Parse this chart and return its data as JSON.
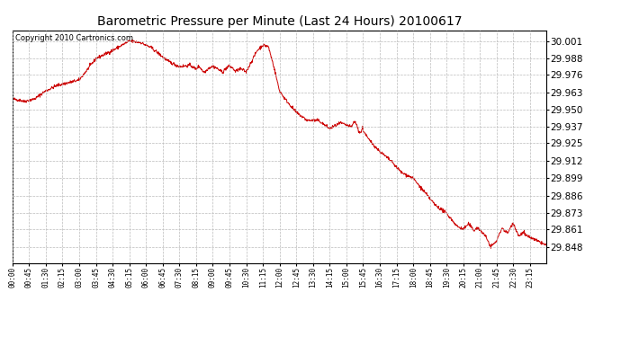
{
  "title": "Barometric Pressure per Minute (Last 24 Hours) 20100617",
  "copyright": "Copyright 2010 Cartronics.com",
  "line_color": "#cc0000",
  "bg_color": "#ffffff",
  "grid_color": "#bbbbbb",
  "yticks": [
    29.848,
    29.861,
    29.873,
    29.886,
    29.899,
    29.912,
    29.925,
    29.937,
    29.95,
    29.963,
    29.976,
    29.988,
    30.001
  ],
  "ylim": [
    29.836,
    30.009
  ],
  "xtick_labels": [
    "00:00",
    "00:45",
    "01:30",
    "02:15",
    "03:00",
    "03:45",
    "04:30",
    "05:15",
    "06:00",
    "06:45",
    "07:30",
    "08:15",
    "09:00",
    "09:45",
    "10:30",
    "11:15",
    "12:00",
    "12:45",
    "13:30",
    "14:15",
    "15:00",
    "15:45",
    "16:30",
    "17:15",
    "18:00",
    "18:45",
    "19:30",
    "20:15",
    "21:00",
    "21:45",
    "22:30",
    "23:15"
  ]
}
